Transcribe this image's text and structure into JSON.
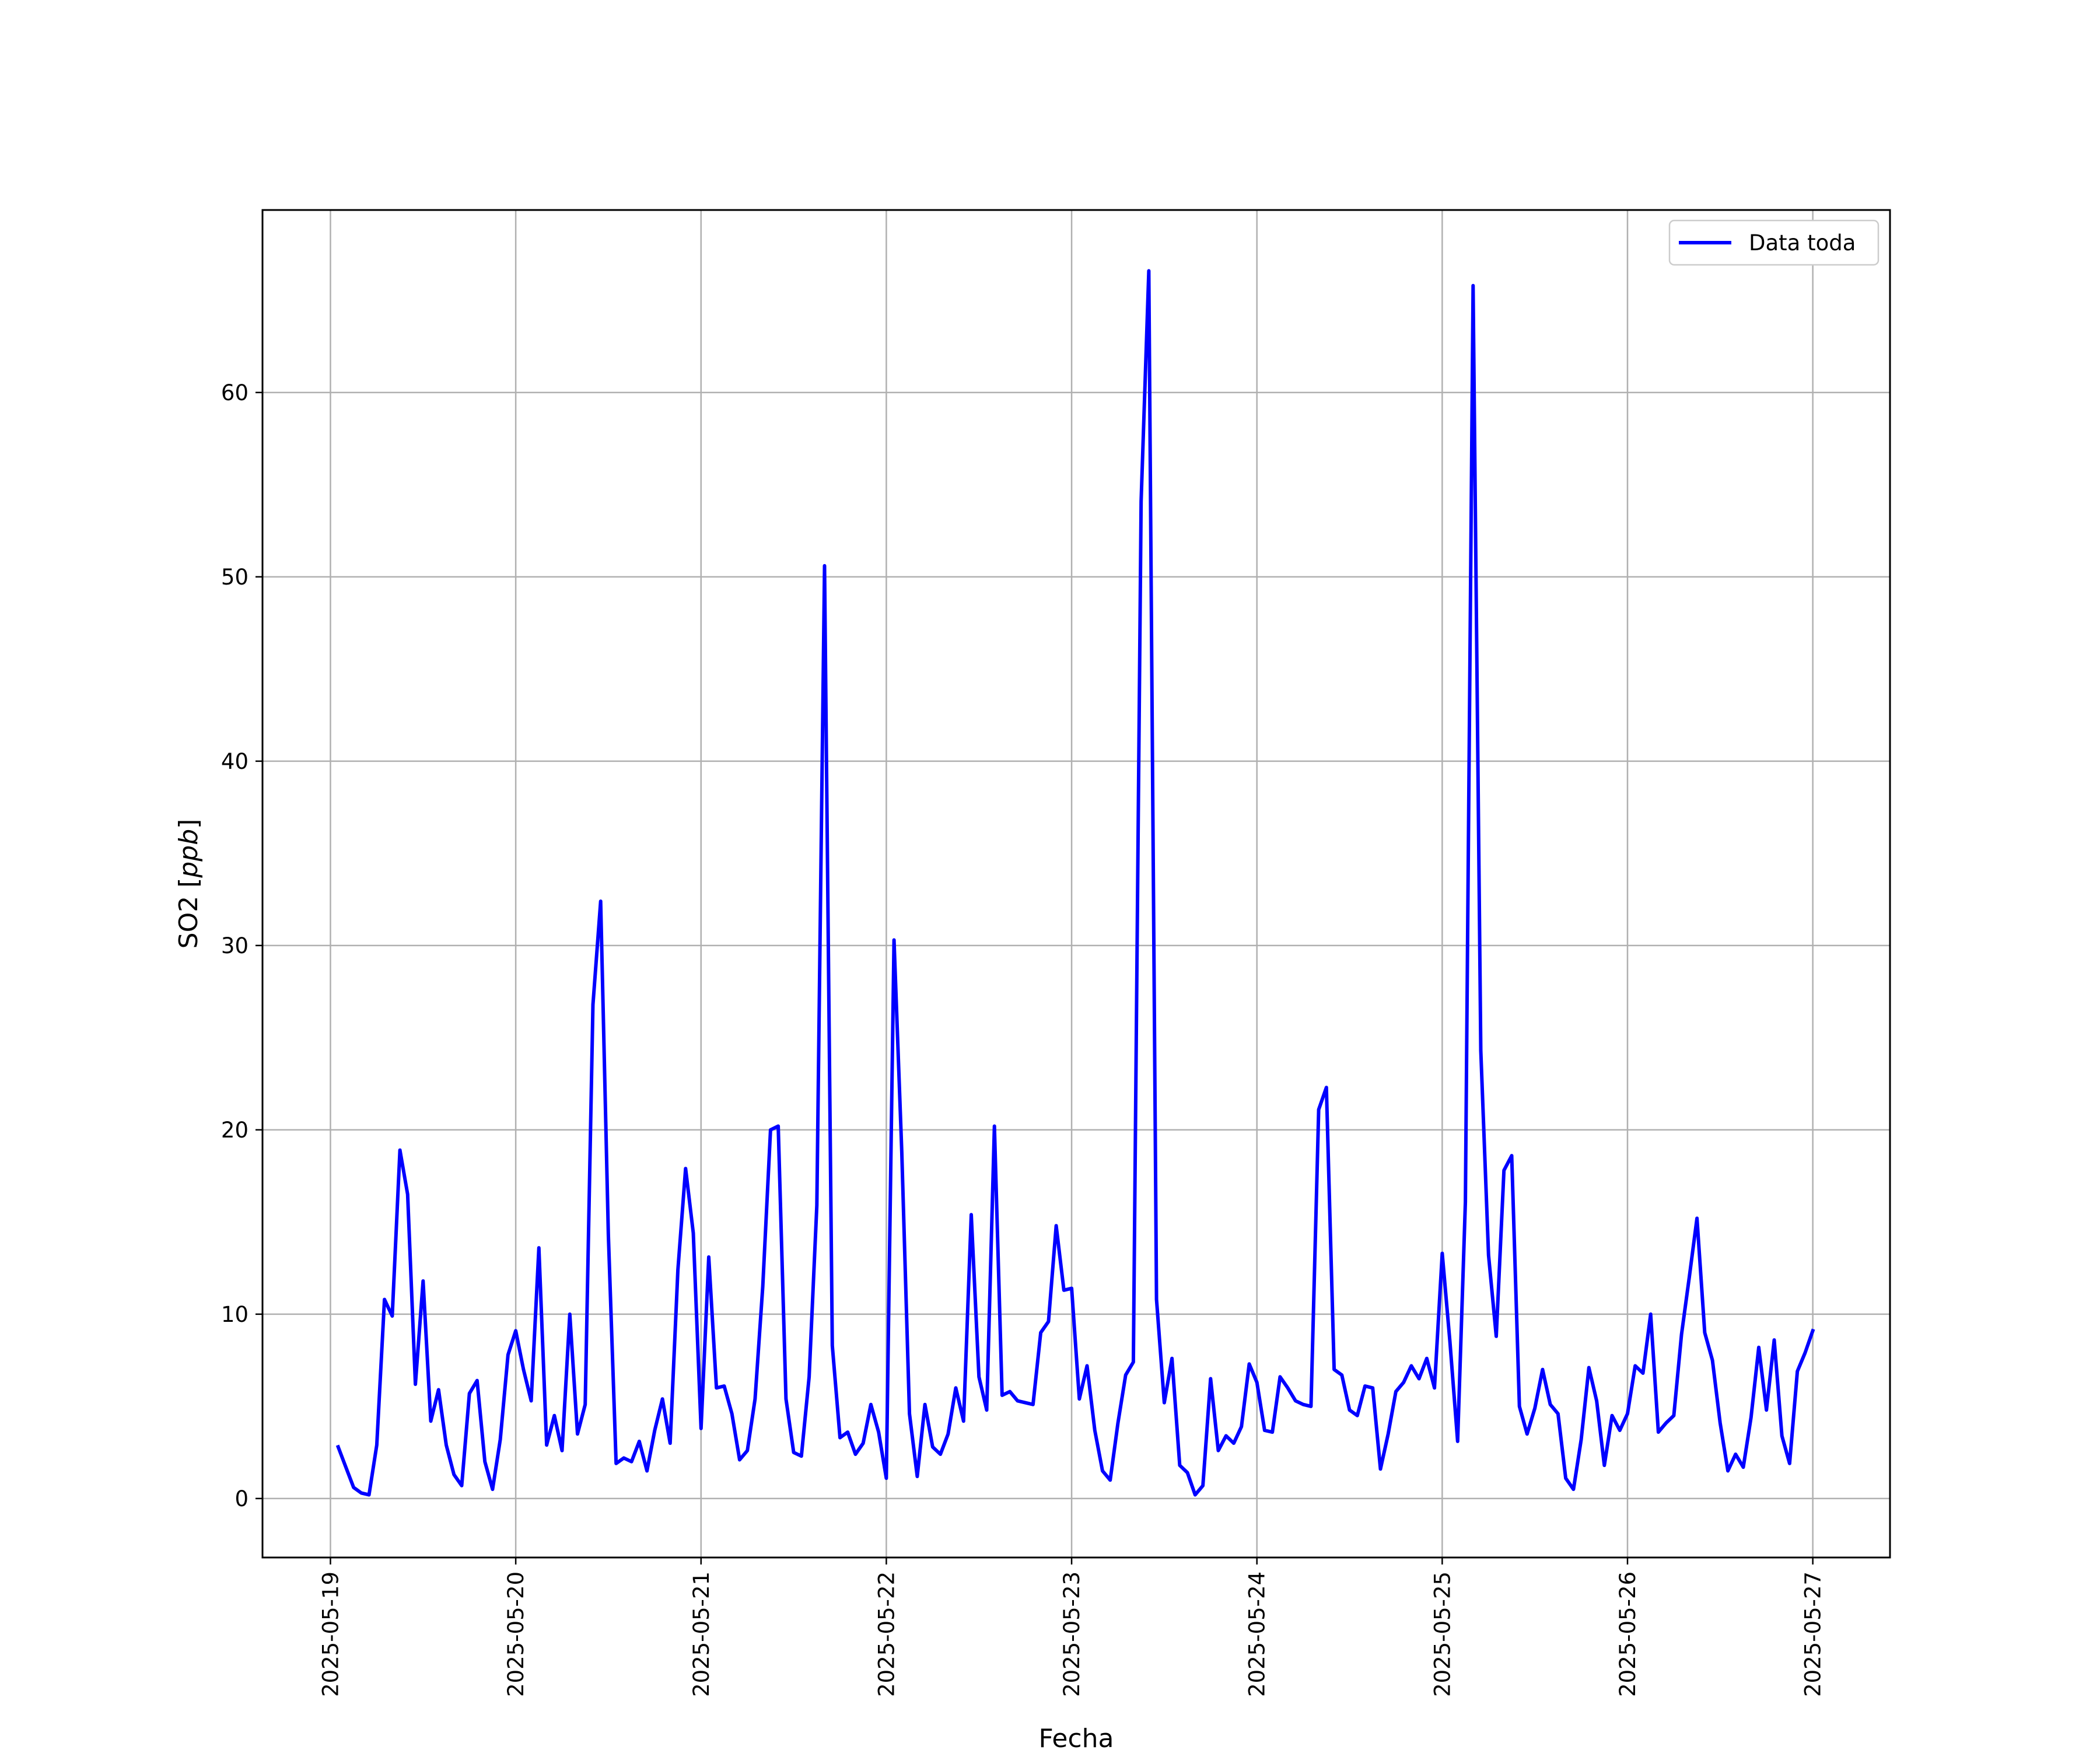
{
  "chart_data": {
    "type": "line",
    "title": "",
    "xlabel": "Fecha",
    "ylabel": "SO2 [",
    "ylabel_unit": "ppb",
    "ylabel_close": "]",
    "ylim": [
      -3.2,
      69.9
    ],
    "xlim": [
      "2025-05-18 15:12",
      "2025-05-27 10:00"
    ],
    "grid": true,
    "legend_position": "top-right",
    "x_tick_labels": [
      "2025-05-19",
      "2025-05-20",
      "2025-05-21",
      "2025-05-22",
      "2025-05-23",
      "2025-05-24",
      "2025-05-25",
      "2025-05-26",
      "2025-05-27"
    ],
    "y_ticks": [
      0,
      10,
      20,
      30,
      40,
      50,
      60
    ],
    "y_tick_labels": [
      "0",
      "10",
      "20",
      "30",
      "40",
      "50",
      "60"
    ],
    "series": [
      {
        "name": "Data toda",
        "color": "#0000ff",
        "x_start": "2025-05-19 01:00",
        "x_interval_hours": 1,
        "values": [
          2.8,
          1.7,
          0.6,
          0.3,
          0.2,
          2.9,
          10.8,
          9.9,
          18.9,
          16.5,
          6.2,
          11.8,
          4.2,
          5.9,
          2.9,
          1.3,
          0.7,
          5.7,
          6.4,
          2.0,
          0.5,
          3.2,
          7.8,
          9.1,
          7.0,
          5.3,
          13.6,
          2.9,
          4.5,
          2.6,
          10.0,
          3.5,
          5.1,
          26.8,
          32.4,
          14.3,
          1.9,
          2.2,
          2.0,
          3.1,
          1.5,
          3.7,
          5.4,
          3.0,
          12.4,
          17.9,
          14.4,
          3.8,
          13.1,
          6.0,
          6.1,
          4.6,
          2.1,
          2.6,
          5.4,
          11.5,
          20.0,
          20.2,
          5.4,
          2.5,
          2.3,
          6.6,
          15.9,
          50.6,
          8.3,
          3.3,
          3.6,
          2.4,
          3.0,
          5.1,
          3.6,
          1.1,
          30.3,
          18.8,
          4.6,
          1.2,
          5.1,
          2.8,
          2.4,
          3.5,
          6.0,
          4.2,
          15.4,
          6.6,
          4.8,
          20.2,
          5.6,
          5.8,
          5.3,
          5.2,
          5.1,
          9.0,
          9.6,
          14.8,
          11.3,
          11.4,
          5.4,
          7.2,
          3.7,
          1.5,
          1.0,
          4.1,
          6.7,
          7.4,
          54.1,
          66.6,
          10.8,
          5.2,
          7.6,
          1.8,
          1.4,
          0.2,
          0.7,
          6.5,
          2.6,
          3.4,
          3.0,
          3.9,
          7.3,
          6.3,
          3.7,
          3.6,
          6.6,
          6.0,
          5.3,
          5.1,
          5.0,
          21.1,
          22.3,
          7.0,
          6.7,
          4.8,
          4.5,
          6.1,
          6.0,
          1.6,
          3.5,
          5.8,
          6.3,
          7.2,
          6.5,
          7.6,
          6.0,
          13.3,
          8.5,
          3.1,
          16.1,
          65.8,
          24.3,
          13.2,
          8.8,
          17.8,
          18.6,
          5.0,
          3.5,
          4.9,
          7.0,
          5.1,
          4.6,
          1.1,
          0.5,
          3.2,
          7.1,
          5.3,
          1.8,
          4.5,
          3.7,
          4.6,
          7.2,
          6.8,
          10.0,
          3.6,
          4.1,
          4.5,
          8.9,
          12.0,
          15.2,
          9.0,
          7.5,
          4.1,
          1.5,
          2.4,
          1.7,
          4.4,
          8.2,
          4.8,
          8.6,
          3.4,
          1.9,
          6.9,
          7.9,
          9.1
        ]
      }
    ]
  }
}
